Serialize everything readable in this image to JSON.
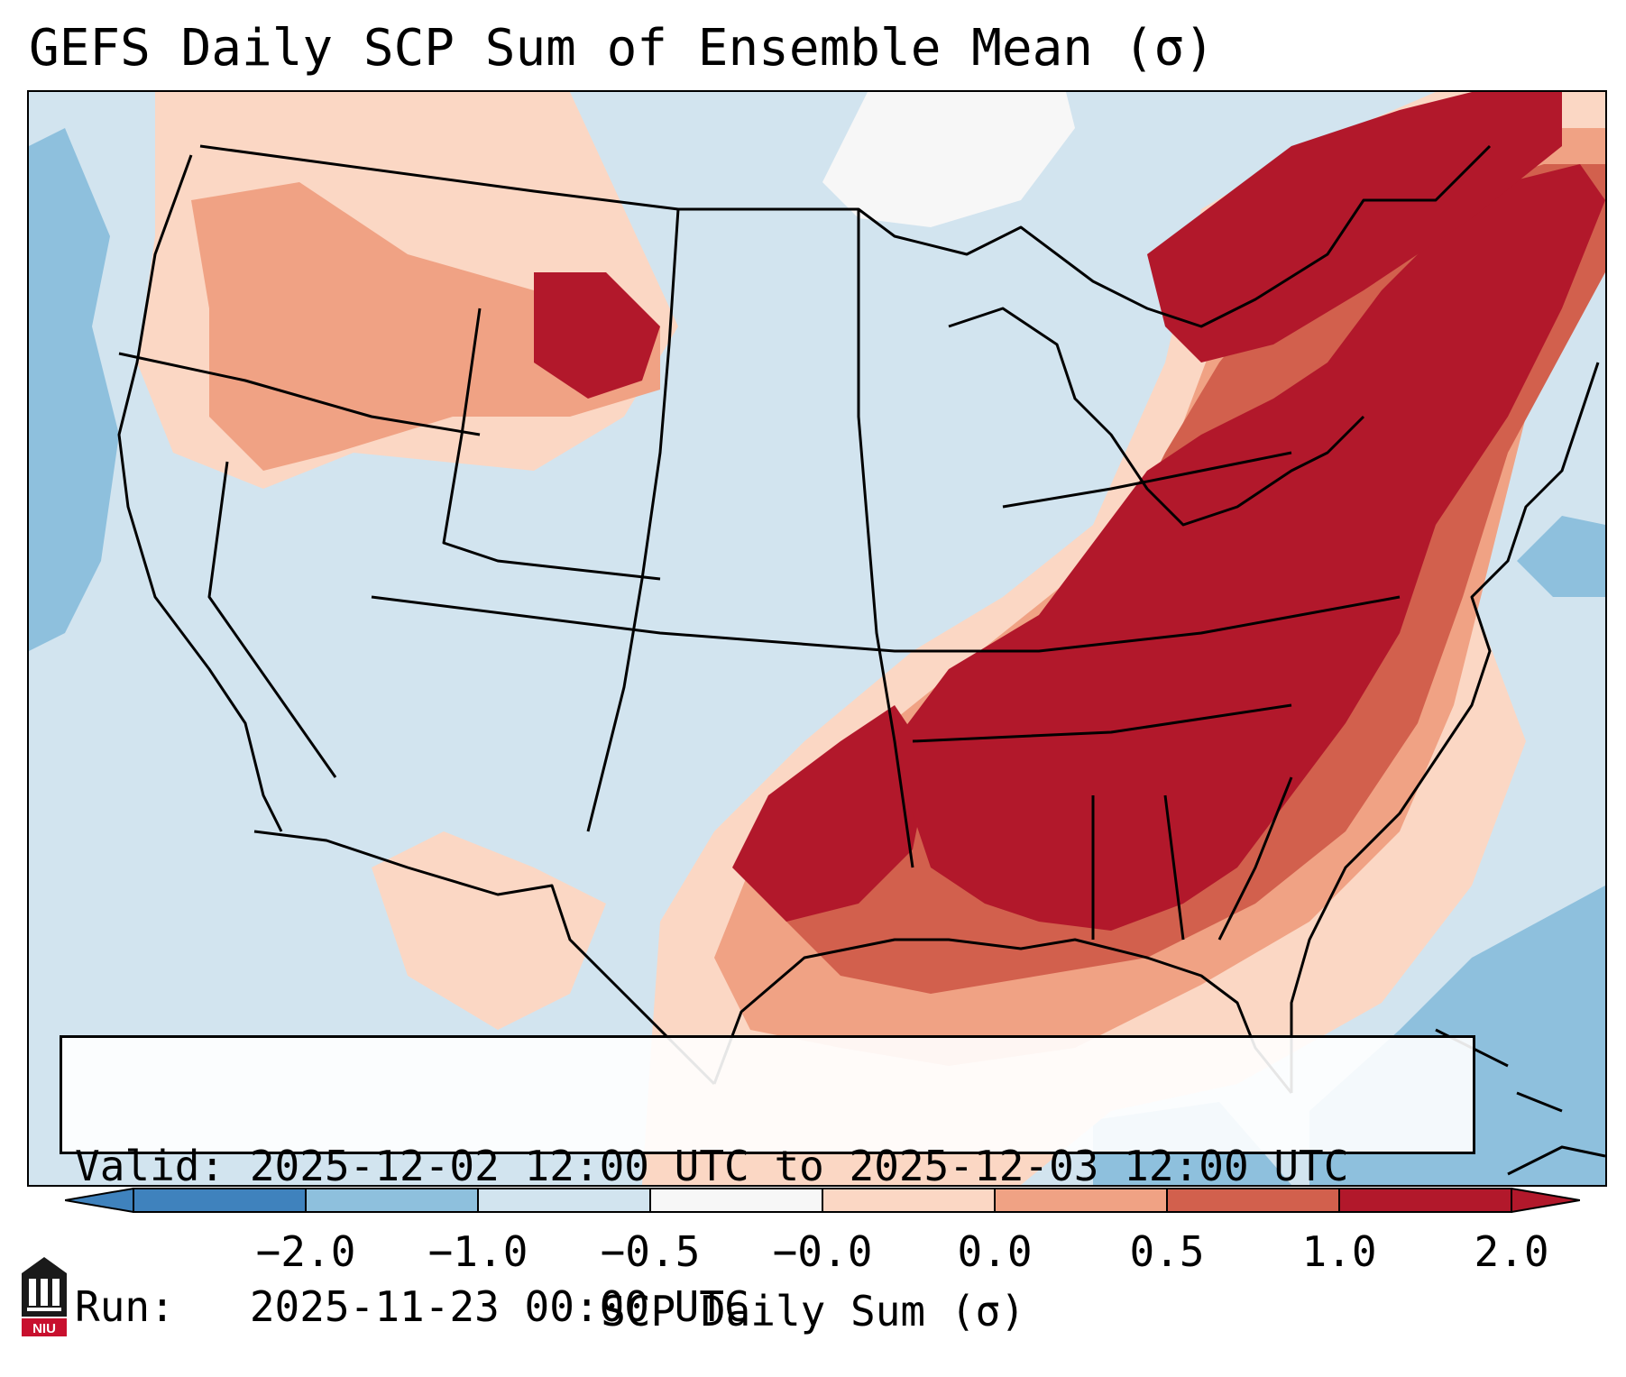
{
  "title": "GEFS Daily SCP Sum of Ensemble Mean (σ)",
  "info": {
    "valid_line": "Valid: 2025-12-02 12:00 UTC to 2025-12-03 12:00 UTC",
    "run_line": "Run:   2025-11-23 00:00 UTC"
  },
  "colorbar": {
    "label": "SCP Daily Sum (σ)",
    "ticks": [
      "−2.0",
      "−1.0",
      "−0.5",
      "−0.0",
      "0.0",
      "0.5",
      "1.0",
      "2.0"
    ],
    "colors": [
      "#3f82bd",
      "#8ec0dd",
      "#d2e4ef",
      "#f7f7f7",
      "#fbd7c4",
      "#f0a284",
      "#d2604d",
      "#b2182b"
    ]
  },
  "map": {
    "region": "CONUS",
    "field": "SCP daily sum anomaly",
    "max_anomaly_region": "Southern Plains, Mid-South, Ohio Valley and Eastern US"
  },
  "logo": {
    "text": "NIU",
    "icon": "niu-logo-icon"
  }
}
